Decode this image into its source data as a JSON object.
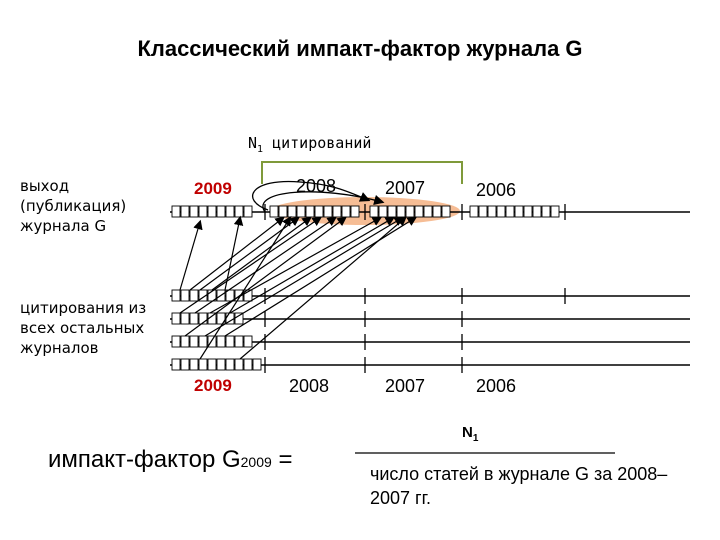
{
  "title": "Классический импакт-фактор журнала G",
  "n1_citations": {
    "n": "N",
    "sub": "1",
    "text": " цитирований"
  },
  "label_output": "выход (публикация) журнала G",
  "label_citations": "цитирования из всех остальных журналов",
  "years_top": [
    "2009",
    "2008",
    "2007",
    "2006"
  ],
  "years_bottom": [
    "2009",
    "2008",
    "2007",
    "2006"
  ],
  "formula": {
    "prefix": "импакт-фактор G",
    "sub": "2009",
    "eq": " ="
  },
  "numerator": {
    "n": "N",
    "sub": "1"
  },
  "denominator": "число статей в журнале G за 2008–2007 гг.",
  "colors": {
    "highlight": "#f4b183",
    "accent_year": "#c00000",
    "bracket": "#7f9a3a"
  }
}
